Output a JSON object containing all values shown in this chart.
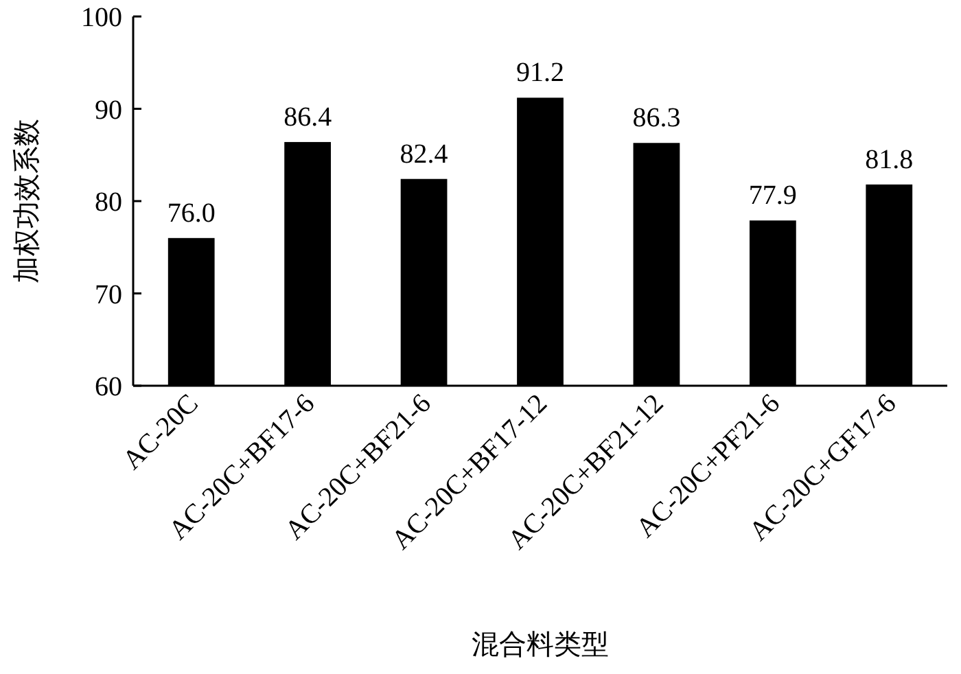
{
  "chart_data": {
    "type": "bar",
    "xlabel": "混合料类型",
    "ylabel": "加权功效系数",
    "categories": [
      "AC-20C",
      "AC-20C+BF17-6",
      "AC-20C+BF21-6",
      "AC-20C+BF17-12",
      "AC-20C+BF21-12",
      "AC-20C+PF21-6",
      "AC-20C+GF17-6"
    ],
    "values": [
      76.0,
      86.4,
      82.4,
      91.2,
      86.3,
      77.9,
      81.8
    ],
    "value_labels": [
      "76.0",
      "86.4",
      "82.4",
      "91.2",
      "86.3",
      "77.9",
      "81.8"
    ],
    "color": "#000000",
    "ylim": [
      60,
      100
    ],
    "yticks": [
      60,
      70,
      80,
      90,
      100
    ]
  }
}
